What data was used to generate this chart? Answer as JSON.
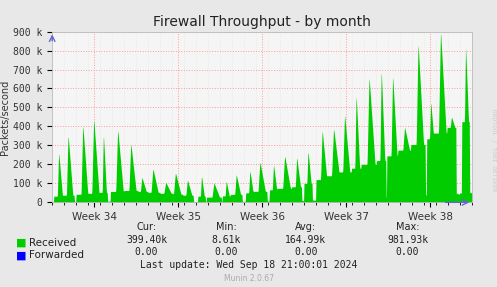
{
  "title": "Firewall Throughput - by month",
  "ylabel": "Packets/second",
  "background_color": "#e8e8e8",
  "plot_background": "#f5f5f5",
  "grid_color": "#ff9999",
  "grid_color_minor": "#dddddd",
  "ytick_labels": [
    "0",
    "100 k",
    "200 k",
    "300 k",
    "400 k",
    "500 k",
    "600 k",
    "700 k",
    "800 k",
    "900 k"
  ],
  "ytick_values": [
    0,
    100000,
    200000,
    300000,
    400000,
    500000,
    600000,
    700000,
    800000,
    900000
  ],
  "ylim": [
    0,
    900000
  ],
  "xtick_labels": [
    "Week 34",
    "Week 35",
    "Week 36",
    "Week 37",
    "Week 38"
  ],
  "received_color": "#00cc00",
  "forwarded_color": "#0000ff",
  "legend_labels": [
    "Received",
    "Forwarded"
  ],
  "stats_headers": [
    "Cur:",
    "Min:",
    "Avg:",
    "Max:"
  ],
  "stats_received": [
    "399.40k",
    "8.61k",
    "164.99k",
    "981.93k"
  ],
  "stats_forwarded": [
    "0.00",
    "0.00",
    "0.00",
    "0.00"
  ],
  "last_update": "Last update: Wed Sep 18 21:00:01 2024",
  "munin_version": "Munin 2.0.67",
  "rrdtool_text": "RRDTOOL / TOBI OETIKER",
  "title_fontsize": 10,
  "axis_fontsize": 7,
  "legend_fontsize": 7.5,
  "stats_fontsize": 7
}
